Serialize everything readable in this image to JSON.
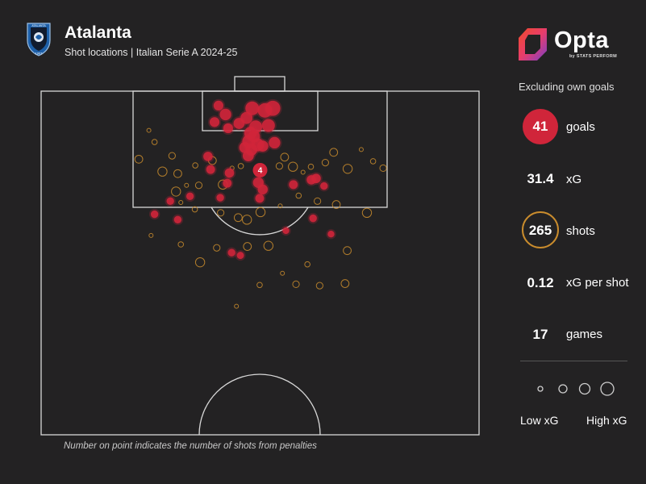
{
  "header": {
    "title": "Atalanta",
    "subtitle": "Shot locations | Italian Serie A 2024-25"
  },
  "crest": {
    "text_top": "ATALANTA",
    "year": "1907"
  },
  "logo": {
    "word": "Opta",
    "byline": "by STATS PERFORM"
  },
  "stats_panel": {
    "note": "Excluding own goals",
    "items": [
      {
        "value": "41",
        "label": "goals"
      },
      {
        "value": "31.4",
        "label": "xG"
      },
      {
        "value": "265",
        "label": "shots"
      },
      {
        "value": "0.12",
        "label": "xG per shot"
      },
      {
        "value": "17",
        "label": "games"
      }
    ]
  },
  "legend": {
    "low": "Low xG",
    "high": "High xG"
  },
  "footnote": "Number on point indicates the number of shots from penalties",
  "colors": {
    "background": "#232223",
    "goal": "#d0253a",
    "shot": "#c98c2d",
    "lines": "#d8d8d8"
  },
  "chart_data": {
    "type": "scatter",
    "title": "Atalanta",
    "subtitle": "Shot locations | Italian Serie A 2024-25",
    "x_range": [
      0,
      100
    ],
    "y_range": [
      50,
      100
    ],
    "penalty": {
      "x": 50,
      "y": 88.5,
      "label": "4"
    },
    "goals": [
      {
        "x": 42.1,
        "y": 96.6,
        "xg": 0.22
      },
      {
        "x": 48.2,
        "y": 97.5,
        "xg": 0.35
      },
      {
        "x": 51.1,
        "y": 97.2,
        "xg": 0.4
      },
      {
        "x": 52.9,
        "y": 97.5,
        "xg": 0.45
      },
      {
        "x": 46.9,
        "y": 96.1,
        "xg": 0.25
      },
      {
        "x": 49.0,
        "y": 94.8,
        "xg": 0.3
      },
      {
        "x": 45.2,
        "y": 95.3,
        "xg": 0.2
      },
      {
        "x": 51.9,
        "y": 95.0,
        "xg": 0.3
      },
      {
        "x": 47.8,
        "y": 93.9,
        "xg": 0.28
      },
      {
        "x": 48.6,
        "y": 93.4,
        "xg": 0.25
      },
      {
        "x": 47.4,
        "y": 92.7,
        "xg": 0.3
      },
      {
        "x": 49.4,
        "y": 92.2,
        "xg": 0.3
      },
      {
        "x": 53.3,
        "y": 92.5,
        "xg": 0.22
      },
      {
        "x": 46.5,
        "y": 91.8,
        "xg": 0.2
      },
      {
        "x": 48.0,
        "y": 91.5,
        "xg": 0.25
      },
      {
        "x": 50.6,
        "y": 92.0,
        "xg": 0.2
      },
      {
        "x": 42.7,
        "y": 94.6,
        "xg": 0.14
      },
      {
        "x": 39.6,
        "y": 95.5,
        "xg": 0.14
      },
      {
        "x": 40.5,
        "y": 97.9,
        "xg": 0.14
      },
      {
        "x": 47.3,
        "y": 90.6,
        "xg": 0.2
      },
      {
        "x": 38.1,
        "y": 90.5,
        "xg": 0.12
      },
      {
        "x": 38.7,
        "y": 88.6,
        "xg": 0.1
      },
      {
        "x": 43.0,
        "y": 88.1,
        "xg": 0.12
      },
      {
        "x": 42.5,
        "y": 86.6,
        "xg": 0.1
      },
      {
        "x": 49.6,
        "y": 86.7,
        "xg": 0.18
      },
      {
        "x": 50.6,
        "y": 85.7,
        "xg": 0.15
      },
      {
        "x": 61.7,
        "y": 87.1,
        "xg": 0.12
      },
      {
        "x": 62.8,
        "y": 87.3,
        "xg": 0.12
      },
      {
        "x": 57.6,
        "y": 86.4,
        "xg": 0.1
      },
      {
        "x": 64.6,
        "y": 86.2,
        "xg": 0.06
      },
      {
        "x": 34.0,
        "y": 84.7,
        "xg": 0.06
      },
      {
        "x": 29.5,
        "y": 84.0,
        "xg": 0.06
      },
      {
        "x": 40.9,
        "y": 84.5,
        "xg": 0.06
      },
      {
        "x": 49.9,
        "y": 84.4,
        "xg": 0.1
      },
      {
        "x": 25.9,
        "y": 82.1,
        "xg": 0.06
      },
      {
        "x": 31.2,
        "y": 81.3,
        "xg": 0.06
      },
      {
        "x": 62.1,
        "y": 81.5,
        "xg": 0.06
      },
      {
        "x": 43.5,
        "y": 76.5,
        "xg": 0.06
      },
      {
        "x": 45.5,
        "y": 76.1,
        "xg": 0.05
      },
      {
        "x": 55.9,
        "y": 79.7,
        "xg": 0.04
      },
      {
        "x": 66.2,
        "y": 79.2,
        "xg": 0.04
      }
    ],
    "shots_sample": [
      {
        "x": 24.6,
        "y": 94.3
      },
      {
        "x": 25.9,
        "y": 92.6
      },
      {
        "x": 29.9,
        "y": 90.6
      },
      {
        "x": 31.2,
        "y": 88.0
      },
      {
        "x": 30.8,
        "y": 85.4
      },
      {
        "x": 33.2,
        "y": 86.3
      },
      {
        "x": 35.2,
        "y": 89.2
      },
      {
        "x": 36.0,
        "y": 86.3
      },
      {
        "x": 39.1,
        "y": 89.9
      },
      {
        "x": 41.5,
        "y": 86.4
      },
      {
        "x": 43.6,
        "y": 88.8
      },
      {
        "x": 45.6,
        "y": 89.1
      },
      {
        "x": 54.4,
        "y": 89.1
      },
      {
        "x": 55.6,
        "y": 90.4
      },
      {
        "x": 57.5,
        "y": 89.0
      },
      {
        "x": 59.8,
        "y": 88.2
      },
      {
        "x": 61.6,
        "y": 89.0
      },
      {
        "x": 64.9,
        "y": 89.6
      },
      {
        "x": 66.8,
        "y": 91.1
      },
      {
        "x": 70.0,
        "y": 88.7
      },
      {
        "x": 73.1,
        "y": 91.5
      },
      {
        "x": 75.8,
        "y": 89.8
      },
      {
        "x": 78.1,
        "y": 88.8
      },
      {
        "x": 22.3,
        "y": 90.1
      },
      {
        "x": 27.7,
        "y": 88.3
      },
      {
        "x": 31.9,
        "y": 83.8
      },
      {
        "x": 35.1,
        "y": 82.8
      },
      {
        "x": 41.0,
        "y": 82.3
      },
      {
        "x": 45.0,
        "y": 81.6
      },
      {
        "x": 50.1,
        "y": 82.4
      },
      {
        "x": 54.6,
        "y": 83.3
      },
      {
        "x": 58.8,
        "y": 84.8
      },
      {
        "x": 63.1,
        "y": 84.0
      },
      {
        "x": 67.4,
        "y": 83.5
      },
      {
        "x": 74.4,
        "y": 82.3
      },
      {
        "x": 25.1,
        "y": 79.0
      },
      {
        "x": 31.9,
        "y": 77.7
      },
      {
        "x": 40.1,
        "y": 77.2
      },
      {
        "x": 47.1,
        "y": 77.4
      },
      {
        "x": 51.9,
        "y": 77.5
      },
      {
        "x": 55.1,
        "y": 73.5
      },
      {
        "x": 60.8,
        "y": 74.8
      },
      {
        "x": 63.6,
        "y": 71.7
      },
      {
        "x": 69.9,
        "y": 76.8
      },
      {
        "x": 36.3,
        "y": 75.1
      },
      {
        "x": 44.6,
        "y": 68.7
      },
      {
        "x": 49.9,
        "y": 71.8
      },
      {
        "x": 58.2,
        "y": 71.9
      },
      {
        "x": 69.4,
        "y": 72.0
      },
      {
        "x": 47.0,
        "y": 81.3
      }
    ],
    "legend_sizes": [
      "low",
      "medium-low",
      "medium-high",
      "high"
    ]
  }
}
